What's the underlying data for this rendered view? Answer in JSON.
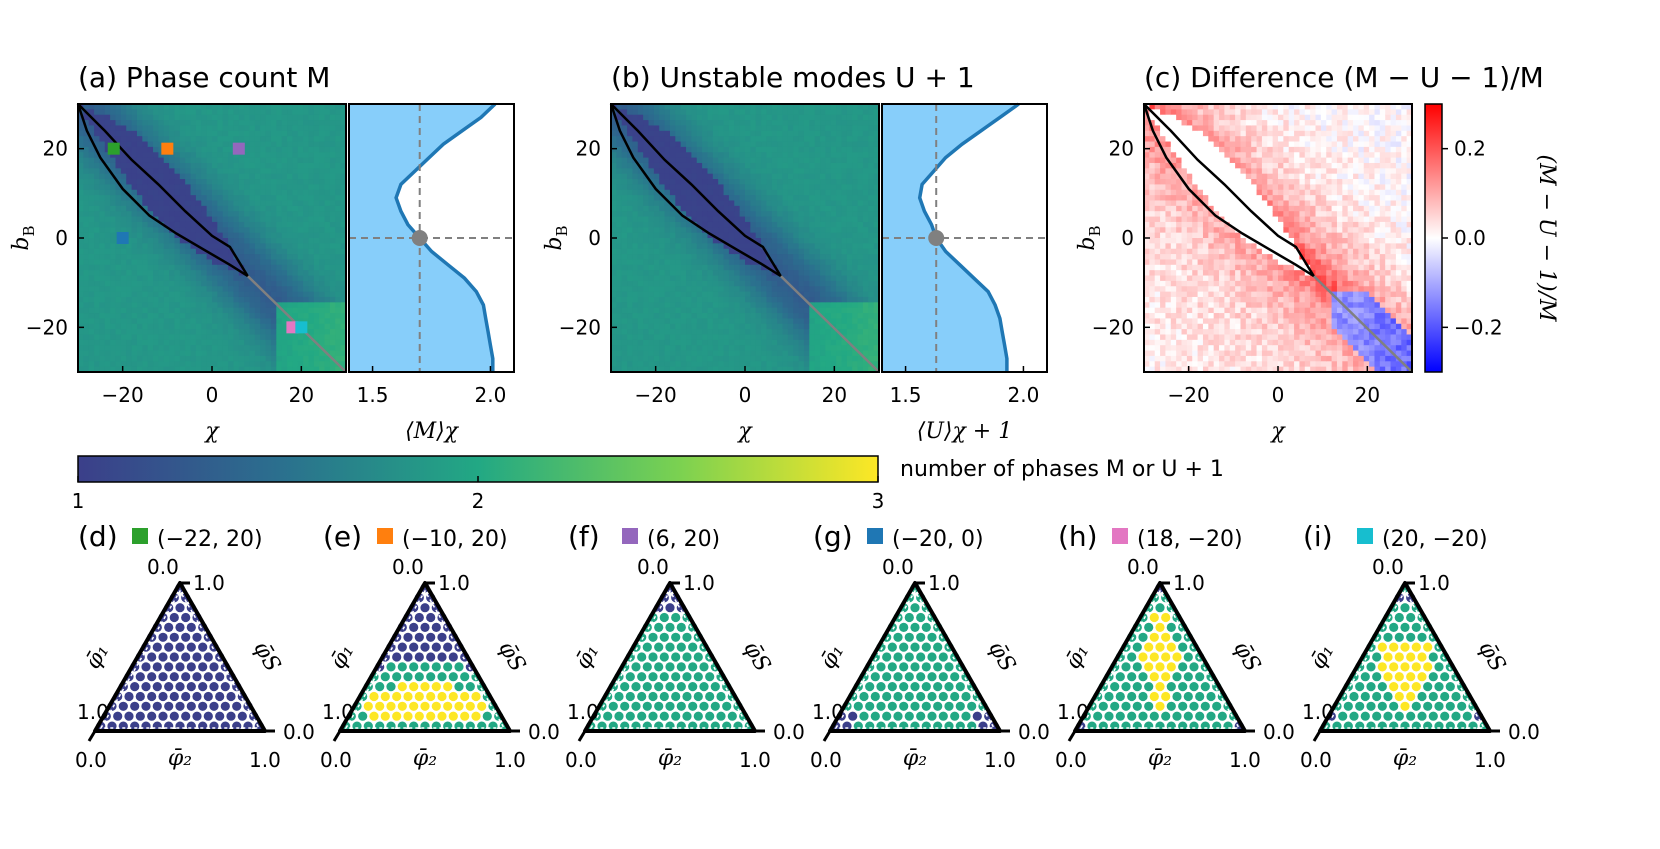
{
  "chart_data": [
    {
      "id": "a",
      "type": "heatmap",
      "title": "(a) Phase count M",
      "xlabel": "χ",
      "ylabel": "b_B",
      "xlim": [
        -30,
        30
      ],
      "ylim": [
        -30,
        30
      ],
      "xticks": [
        "−20",
        "0",
        "20"
      ],
      "yticks": [
        "20",
        "0",
        "−20"
      ],
      "xtick_values": [
        -20,
        0,
        20
      ],
      "ytick_values": [
        20,
        0,
        -20
      ],
      "colorscale": "viridis",
      "clim": [
        1,
        3
      ],
      "markers": [
        {
          "label": "d",
          "x": -22,
          "y": 20,
          "color": "#2ca02c"
        },
        {
          "label": "e",
          "x": -10,
          "y": 20,
          "color": "#ff7f0e"
        },
        {
          "label": "f",
          "x": 6,
          "y": 20,
          "color": "#9467bd"
        },
        {
          "label": "g",
          "x": -20,
          "y": 0,
          "color": "#1f77b4"
        },
        {
          "label": "h",
          "x": 18,
          "y": -20,
          "color": "#e377c2"
        },
        {
          "label": "i",
          "x": 20,
          "y": -20,
          "color": "#17becf"
        }
      ]
    },
    {
      "id": "a2",
      "type": "area",
      "xlabel": "⟨M⟩χ",
      "xlim": [
        1.4,
        2.1
      ],
      "ylim": [
        -30,
        30
      ],
      "xticks": [
        "1.5",
        "2.0"
      ],
      "xtick_values": [
        1.5,
        2.0
      ],
      "y": [
        30,
        27,
        24,
        21,
        18,
        15,
        12,
        9,
        6,
        3,
        0,
        -3,
        -6,
        -9,
        -12,
        -15,
        -18,
        -21,
        -24,
        -27,
        -30
      ],
      "values": [
        2.02,
        1.96,
        1.88,
        1.8,
        1.74,
        1.68,
        1.62,
        1.6,
        1.62,
        1.65,
        1.7,
        1.75,
        1.82,
        1.89,
        1.94,
        1.97,
        1.98,
        1.99,
        2.0,
        2.01,
        2.01
      ],
      "reference": {
        "x": 1.7,
        "y": 0
      }
    },
    {
      "id": "b",
      "type": "heatmap",
      "title": "(b) Unstable modes U + 1",
      "xlabel": "χ",
      "ylabel": "b_B",
      "xlim": [
        -30,
        30
      ],
      "ylim": [
        -30,
        30
      ],
      "xticks": [
        "−20",
        "0",
        "20"
      ],
      "yticks": [
        "20",
        "0",
        "−20"
      ],
      "xtick_values": [
        -20,
        0,
        20
      ],
      "ytick_values": [
        20,
        0,
        -20
      ],
      "colorscale": "viridis",
      "clim": [
        1,
        3
      ]
    },
    {
      "id": "b2",
      "type": "area",
      "xlabel": "⟨U⟩χ + 1",
      "xlim": [
        1.4,
        2.1
      ],
      "ylim": [
        -30,
        30
      ],
      "xticks": [
        "1.5",
        "2.0"
      ],
      "xtick_values": [
        1.5,
        2.0
      ],
      "y": [
        30,
        27,
        24,
        21,
        18,
        15,
        12,
        9,
        6,
        3,
        0,
        -3,
        -6,
        -9,
        -12,
        -15,
        -18,
        -21,
        -24,
        -27,
        -30
      ],
      "values": [
        1.98,
        1.9,
        1.82,
        1.74,
        1.67,
        1.62,
        1.57,
        1.56,
        1.58,
        1.61,
        1.63,
        1.67,
        1.73,
        1.79,
        1.85,
        1.88,
        1.9,
        1.91,
        1.92,
        1.93,
        1.93
      ],
      "reference": {
        "x": 1.63,
        "y": 0
      }
    },
    {
      "id": "c",
      "type": "heatmap",
      "title": "(c) Difference (M − U − 1)/M",
      "xlabel": "χ",
      "ylabel": "b_B",
      "xlim": [
        -30,
        30
      ],
      "ylim": [
        -30,
        30
      ],
      "xticks": [
        "−20",
        "0",
        "20"
      ],
      "yticks": [
        "20",
        "0",
        "−20"
      ],
      "xtick_values": [
        -20,
        0,
        20
      ],
      "ytick_values": [
        20,
        0,
        -20
      ],
      "colorscale": "bwr",
      "clim": [
        -0.3,
        0.3
      ],
      "colorbar_label": "(M − U − 1)/M",
      "colorbar_ticks": [
        "0.2",
        "0.0",
        "−0.2"
      ],
      "colorbar_tick_values": [
        0.2,
        0.0,
        -0.2
      ]
    },
    {
      "id": "colorbar",
      "type": "heatmap",
      "label": "number of phases M or U + 1",
      "ticks": [
        "1",
        "2",
        "3"
      ],
      "tick_values": [
        1,
        2,
        3
      ]
    },
    {
      "id": "d",
      "type": "scatter",
      "title": "(d)",
      "marker_color": "#2ca02c",
      "coords": "(−22, 20)",
      "axis_labels": {
        "left": "φ̄₁",
        "bottom": "φ̄₂",
        "right": "φ̄S"
      },
      "ticks": {
        "top0": "0.0",
        "top1": "1.0",
        "left1": "1.0",
        "bl": "0.0",
        "br_bottom": "1.0",
        "br_right": "0.0"
      },
      "regions": {
        "dark_below": 0.0,
        "yellow": "none",
        "bottom_dark_left": 0,
        "bottom_dark_right": 0
      }
    },
    {
      "id": "e",
      "type": "scatter",
      "title": "(e)",
      "marker_color": "#ff7f0e",
      "coords": "(−10, 20)",
      "axis_labels": {
        "left": "φ̄₁",
        "bottom": "φ̄₂",
        "right": "φ̄S"
      },
      "ticks": {
        "top0": "0.0",
        "top1": "1.0",
        "left1": "1.0",
        "bl": "0.0",
        "br_bottom": "1.0",
        "br_right": "0.0"
      }
    },
    {
      "id": "f",
      "type": "scatter",
      "title": "(f)",
      "marker_color": "#9467bd",
      "coords": "(6, 20)",
      "axis_labels": {
        "left": "φ̄₁",
        "bottom": "φ̄₂",
        "right": "φ̄S"
      },
      "ticks": {
        "top0": "0.0",
        "top1": "1.0",
        "left1": "1.0",
        "bl": "0.0",
        "br_bottom": "1.0",
        "br_right": "0.0"
      }
    },
    {
      "id": "g",
      "type": "scatter",
      "title": "(g)",
      "marker_color": "#1f77b4",
      "coords": "(−20, 0)",
      "axis_labels": {
        "left": "φ̄₁",
        "bottom": "φ̄₂",
        "right": "φ̄S"
      },
      "ticks": {
        "top0": "0.0",
        "top1": "1.0",
        "left1": "1.0",
        "bl": "0.0",
        "br_bottom": "1.0",
        "br_right": "0.0"
      }
    },
    {
      "id": "h",
      "type": "scatter",
      "title": "(h)",
      "marker_color": "#e377c2",
      "coords": "(18, −20)",
      "axis_labels": {
        "left": "φ̄₁",
        "bottom": "φ̄₂",
        "right": "φ̄S"
      },
      "ticks": {
        "top0": "0.0",
        "top1": "1.0",
        "left1": "1.0",
        "bl": "0.0",
        "br_bottom": "1.0",
        "br_right": "0.0"
      }
    },
    {
      "id": "i",
      "type": "scatter",
      "title": "(i)",
      "marker_color": "#17becf",
      "coords": "(20, −20)",
      "axis_labels": {
        "left": "φ̄₁",
        "bottom": "φ̄₂",
        "right": "φ̄S"
      },
      "ticks": {
        "top0": "0.0",
        "top1": "1.0",
        "left1": "1.0",
        "bl": "0.0",
        "br_bottom": "1.0",
        "br_right": "0.0"
      }
    }
  ]
}
